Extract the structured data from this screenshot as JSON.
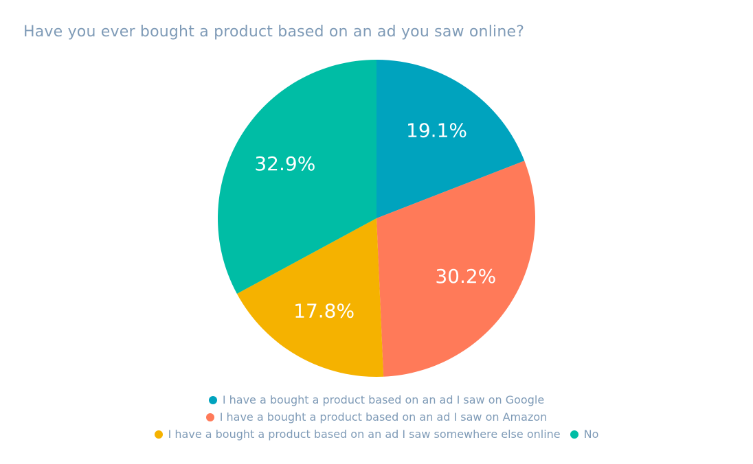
{
  "chart_data": {
    "type": "pie",
    "title": "Have you ever bought a product based on an ad you saw online?",
    "slices": [
      {
        "label": "I have a bought a product based on an ad I saw on Google",
        "value": 19.1,
        "display": "19.1%",
        "color": "#00a3be"
      },
      {
        "label": "I have a bought a product based on an ad I saw on Amazon",
        "value": 30.2,
        "display": "30.2%",
        "color": "#ff7a59"
      },
      {
        "label": "I have a bought a product based on an ad I saw somewhere else online",
        "value": 17.8,
        "display": "17.8%",
        "color": "#f5b200"
      },
      {
        "label": "No",
        "value": 32.9,
        "display": "32.9%",
        "color": "#00bda5"
      }
    ],
    "start": "12 o'clock",
    "direction": "clockwise",
    "legend_position": "bottom"
  }
}
